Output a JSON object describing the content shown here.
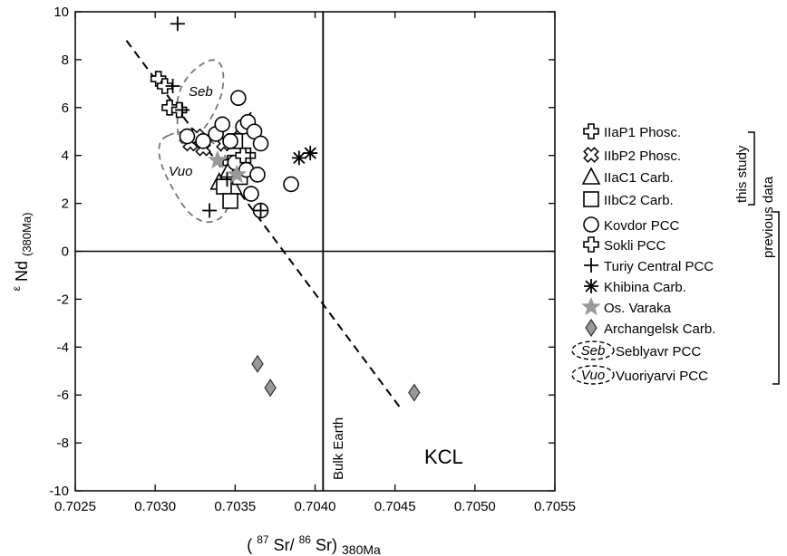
{
  "chart_data": {
    "type": "scatter",
    "title": "",
    "xlabel_parts": {
      "open": "(",
      "sup1": "87",
      "mid": "Sr/",
      "sup2": "86",
      "close": "Sr)",
      "sub": "380Ma"
    },
    "ylabel_parts": {
      "sup": "ε",
      "main": "Nd",
      "sub": "(380Ma)"
    },
    "xlim": [
      0.7025,
      0.7055
    ],
    "ylim": [
      -10,
      10
    ],
    "xticks": [
      {
        "v": 0.7025,
        "label": "0.7025"
      },
      {
        "v": 0.703,
        "label": "0.7030"
      },
      {
        "v": 0.7035,
        "label": "0.7035"
      },
      {
        "v": 0.704,
        "label": "0.7040"
      },
      {
        "v": 0.7045,
        "label": "0.7045"
      },
      {
        "v": 0.705,
        "label": "0.7050"
      },
      {
        "v": 0.7055,
        "label": "0.7055"
      }
    ],
    "yticks": [
      {
        "v": 10,
        "label": "10"
      },
      {
        "v": 8,
        "label": "8"
      },
      {
        "v": 6,
        "label": "6"
      },
      {
        "v": 4,
        "label": "4"
      },
      {
        "v": 2,
        "label": "2"
      },
      {
        "v": 0,
        "label": "0"
      },
      {
        "v": -2,
        "label": "-2"
      },
      {
        "v": -4,
        "label": "-4"
      },
      {
        "v": -6,
        "label": "-6"
      },
      {
        "v": -8,
        "label": "-8"
      },
      {
        "v": -10,
        "label": "-10"
      }
    ],
    "grid": false,
    "bulk_earth": {
      "x": 0.70405,
      "label": "Bulk Earth"
    },
    "zero_line_y": 0,
    "kcl_line": {
      "x": [
        0.70282,
        0.70454
      ],
      "y": [
        8.8,
        -6.6
      ]
    },
    "solid_segment": {
      "x": [
        0.70345,
        0.7036
      ],
      "y": [
        4.5,
        5.8
      ]
    },
    "annotation": "KCL",
    "legend_position": "right",
    "series": [
      {
        "name": "IIaP1 Phosc.",
        "marker": "cross-open",
        "color": "#000000",
        "x": [
          0.70347,
          0.70358
        ],
        "y": [
          3.7,
          4.0
        ]
      },
      {
        "name": "IIbP2 Phosc.",
        "marker": "x-open",
        "color": "#000000",
        "x": [
          0.70322,
          0.70326,
          0.7033,
          0.70343,
          0.70349
        ],
        "y": [
          4.5,
          4.8,
          4.3,
          4.5,
          3.2
        ]
      },
      {
        "name": "IIaC1 Carb.",
        "marker": "triangle",
        "color": "#000000",
        "x": [
          0.7034,
          0.70346,
          0.70349
        ],
        "y": [
          2.9,
          3.4,
          2.7
        ]
      },
      {
        "name": "IIbC2 Carb.",
        "marker": "square",
        "color": "#000000",
        "x": [
          0.70343,
          0.70347,
          0.7035,
          0.70353
        ],
        "y": [
          2.7,
          2.1,
          4.6,
          3.1
        ]
      },
      {
        "name": "Kovdor PCC",
        "marker": "circle",
        "color": "#000000",
        "x": [
          0.7032,
          0.7033,
          0.70338,
          0.70342,
          0.70347,
          0.70352,
          0.70355,
          0.70358,
          0.7036,
          0.70362,
          0.70366,
          0.7035,
          0.70357,
          0.70364,
          0.70385,
          0.70366
        ],
        "y": [
          4.8,
          4.6,
          4.9,
          5.3,
          4.6,
          6.4,
          5.2,
          5.4,
          2.4,
          5.0,
          4.5,
          3.7,
          3.4,
          3.2,
          2.8,
          1.7
        ]
      },
      {
        "name": "Sokli PCC",
        "marker": "plus-open",
        "color": "#000000",
        "x": [
          0.70302,
          0.70306,
          0.70309,
          0.70315,
          0.70355
        ],
        "y": [
          7.2,
          6.9,
          6.0,
          5.9,
          4.0
        ]
      },
      {
        "name": "Turiy Central PCC",
        "marker": "plus",
        "color": "#000000",
        "x": [
          0.70314,
          0.70311,
          0.70317,
          0.70334,
          0.70345,
          0.70366
        ],
        "y": [
          9.5,
          6.9,
          5.9,
          1.7,
          3.0,
          1.7
        ]
      },
      {
        "name": "Khibina Carb.",
        "marker": "asterisk",
        "color": "#000000",
        "x": [
          0.7039,
          0.70397
        ],
        "y": [
          3.9,
          4.1
        ]
      },
      {
        "name": "Os. Varaka",
        "marker": "star",
        "color": "#999999",
        "x": [
          0.70339,
          0.70351
        ],
        "y": [
          3.8,
          3.2
        ]
      },
      {
        "name": "Archangelsk Carb.",
        "marker": "diamond",
        "color": "#999999",
        "x": [
          0.70364,
          0.70372,
          0.70462
        ],
        "y": [
          -4.7,
          -5.7,
          -5.9
        ]
      }
    ],
    "fields": [
      {
        "label": "Seb",
        "name_text": "Seblyavr PCC",
        "color": "#777777"
      },
      {
        "label": "Vuo",
        "name_text": "Vuoriyarvi PCC",
        "color": "#777777"
      }
    ],
    "brackets": {
      "this_study": "this study",
      "previous": "previous data"
    }
  }
}
